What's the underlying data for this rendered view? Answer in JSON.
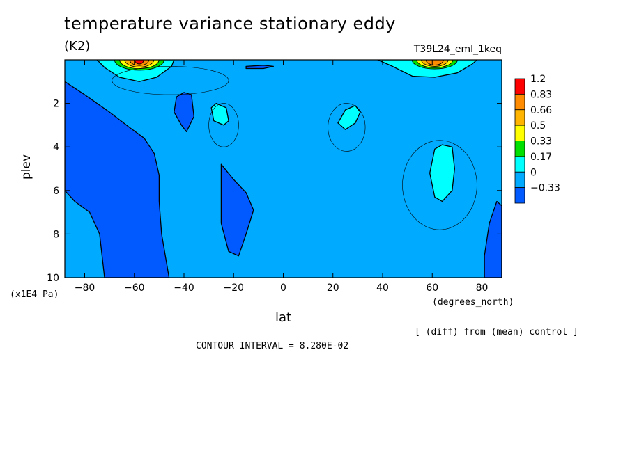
{
  "title": "temperature variance stationary eddy",
  "units": "(K2)",
  "run_id": "T39L24_eml_1keq",
  "xlabel": "lat",
  "ylabel": "plev",
  "y_units": "(x1E4 Pa)",
  "x_units": "(degrees_north)",
  "diff_note": "[ (diff) from (mean) control ]",
  "contour_interval": "CONTOUR INTERVAL = 8.280E-02",
  "chart_data": {
    "type": "contour",
    "title": "temperature variance stationary eddy",
    "xlabel": "lat",
    "ylabel": "plev",
    "xlim": [
      -88,
      88
    ],
    "ylim": [
      10,
      0
    ],
    "x_ticks": [
      -80,
      -60,
      -40,
      -20,
      0,
      20,
      40,
      60,
      80
    ],
    "y_ticks": [
      2,
      4,
      6,
      8,
      10
    ],
    "contour_interval": 0.0828,
    "background_level": {
      "range": "0 to 0.17",
      "color": "#00aaff"
    },
    "regions": [
      {
        "name": "southern-high-latitude-negative",
        "level": "-0.33 to 0",
        "color": "#005aff",
        "points": [
          [
            -88,
            1.0
          ],
          [
            -80,
            1.6
          ],
          [
            -70,
            2.4
          ],
          [
            -62,
            3.1
          ],
          [
            -56,
            3.6
          ],
          [
            -52,
            4.3
          ],
          [
            -50,
            5.3
          ],
          [
            -50,
            6.5
          ],
          [
            -49,
            8.0
          ],
          [
            -46,
            10
          ],
          [
            -72,
            10
          ],
          [
            -74,
            8.0
          ],
          [
            -78,
            7.0
          ],
          [
            -84,
            6.5
          ],
          [
            -88,
            6.0
          ]
        ]
      },
      {
        "name": "upper-small-negative",
        "level": "-0.33 to 0",
        "color": "#005aff",
        "points": [
          [
            -43,
            1.7
          ],
          [
            -40,
            1.5
          ],
          [
            -37,
            1.6
          ],
          [
            -36,
            2.6
          ],
          [
            -39,
            3.3
          ],
          [
            -41,
            3.0
          ],
          [
            -44,
            2.4
          ]
        ]
      },
      {
        "name": "tropical-negative",
        "level": "-0.33 to 0",
        "color": "#005aff",
        "points": [
          [
            -25,
            4.8
          ],
          [
            -20,
            5.5
          ],
          [
            -15,
            6.1
          ],
          [
            -12,
            6.9
          ],
          [
            -15,
            8.0
          ],
          [
            -18,
            9.0
          ],
          [
            -22,
            8.8
          ],
          [
            -25,
            7.5
          ]
        ]
      },
      {
        "name": "northern-polar-negative",
        "level": "-0.33 to 0",
        "color": "#005aff",
        "points": [
          [
            86,
            6.5
          ],
          [
            88,
            6.7
          ],
          [
            88,
            10
          ],
          [
            81,
            10
          ],
          [
            81,
            9.0
          ],
          [
            83,
            7.5
          ]
        ]
      },
      {
        "name": "top-southern-negative-sliver",
        "level": "-0.33 to 0",
        "color": "#005aff",
        "points": [
          [
            -15,
            0.3
          ],
          [
            -8,
            0.25
          ],
          [
            -4,
            0.3
          ],
          [
            -8,
            0.4
          ],
          [
            -15,
            0.4
          ]
        ]
      },
      {
        "name": "southern-jet-maximum",
        "level": "0.17 to 1.2",
        "color": "#00ffff",
        "points": [
          [
            -75,
            0.0
          ],
          [
            -72,
            0.35
          ],
          [
            -66,
            0.8
          ],
          [
            -58,
            1.0
          ],
          [
            -51,
            0.8
          ],
          [
            -45,
            0.3
          ],
          [
            -44,
            0.0
          ]
        ]
      },
      {
        "name": "northern-jet-maximum",
        "level": "0.17 to 0.83",
        "color": "#00ffff",
        "points": [
          [
            38,
            0.0
          ],
          [
            44,
            0.3
          ],
          [
            52,
            0.75
          ],
          [
            61,
            0.8
          ],
          [
            70,
            0.6
          ],
          [
            76,
            0.2
          ],
          [
            78,
            0.0
          ]
        ]
      },
      {
        "name": "southern-subtropical-cyan",
        "level": "0.17 to 0.33",
        "color": "#00ffff",
        "points": [
          [
            -29,
            2.2
          ],
          [
            -27,
            2.0
          ],
          [
            -23,
            2.2
          ],
          [
            -22,
            2.8
          ],
          [
            -24,
            3.0
          ],
          [
            -28,
            2.8
          ]
        ]
      },
      {
        "name": "northern-subtropical-cyan",
        "level": "0.17 to 0.33",
        "color": "#00ffff",
        "points": [
          [
            22,
            2.9
          ],
          [
            25,
            2.3
          ],
          [
            29,
            2.1
          ],
          [
            31,
            2.4
          ],
          [
            29,
            2.9
          ],
          [
            25,
            3.2
          ]
        ]
      },
      {
        "name": "northern-midlatitude-cyan",
        "level": "0.17 to 0.33",
        "color": "#00ffff",
        "points": [
          [
            61,
            4.1
          ],
          [
            64,
            3.9
          ],
          [
            68,
            4.0
          ],
          [
            69,
            5.0
          ],
          [
            68,
            6.0
          ],
          [
            64,
            6.5
          ],
          [
            61,
            6.3
          ],
          [
            59,
            5.2
          ]
        ]
      }
    ],
    "colorbar": {
      "labels": [
        "1.2",
        "0.83",
        "0.66",
        "0.5",
        "0.33",
        "0.17",
        "0",
        "-0.33"
      ],
      "colors": [
        "#ff0000",
        "#ff8c00",
        "#ffb400",
        "#ffff00",
        "#00e000",
        "#00ffff",
        "#00aaff",
        "#005aff"
      ]
    }
  }
}
